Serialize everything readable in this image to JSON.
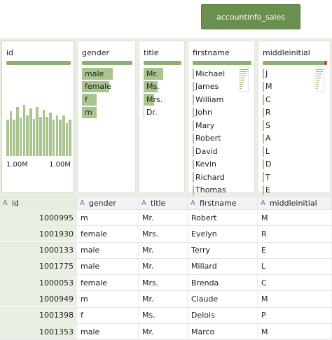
{
  "dataset": {
    "name": "accountinfo_sales"
  },
  "profiles": {
    "id": {
      "title": "id",
      "histogram": [
        0.55,
        0.68,
        0.55,
        0.75,
        0.58,
        0.78,
        0.62,
        0.72,
        0.56,
        0.75,
        0.6,
        0.7,
        0.6,
        0.66,
        0.55,
        0.62,
        0.55,
        0.62,
        0.5,
        0.55
      ],
      "axis_min": "1.00M",
      "axis_max": "1.00M"
    },
    "gender": {
      "title": "gender",
      "values": [
        {
          "label": "male",
          "frac": 0.95
        },
        {
          "label": "female",
          "frac": 0.85
        },
        {
          "label": "f",
          "frac": 0.45
        },
        {
          "label": "m",
          "frac": 0.45
        }
      ]
    },
    "title": {
      "title": "title",
      "values": [
        {
          "label": "Mr.",
          "frac": 1.0
        },
        {
          "label": "Ms.",
          "frac": 0.7
        },
        {
          "label": "Mrs.",
          "frac": 0.55
        },
        {
          "label": "Dr.",
          "frac": 0.05
        }
      ]
    },
    "firstname": {
      "title": "firstname",
      "values": [
        "Michael",
        "James",
        "William",
        "John",
        "Mary",
        "Robert",
        "David",
        "Kevin",
        "Richard",
        "Thomas"
      ]
    },
    "middleinitial": {
      "title": "middleinitial",
      "values": [
        "J",
        "M",
        "C",
        "R",
        "S",
        "A",
        "L",
        "D",
        "T",
        "E"
      ]
    }
  },
  "columns": [
    "id",
    "gender",
    "title",
    "firstname",
    "middleinitial"
  ],
  "column_type_icon": "A",
  "rows": [
    {
      "id": "1000995",
      "gender": "m",
      "title": "Mr.",
      "firstname": "Robert",
      "middleinitial": "M"
    },
    {
      "id": "1001930",
      "gender": "female",
      "title": "Mrs.",
      "firstname": "Evelyn",
      "middleinitial": "R"
    },
    {
      "id": "1000133",
      "gender": "male",
      "title": "Mr.",
      "firstname": "Terry",
      "middleinitial": "E"
    },
    {
      "id": "1001775",
      "gender": "male",
      "title": "Mr.",
      "firstname": "Millard",
      "middleinitial": "L"
    },
    {
      "id": "1000053",
      "gender": "female",
      "title": "Mrs.",
      "firstname": "Brenda",
      "middleinitial": "C"
    },
    {
      "id": "1000949",
      "gender": "m",
      "title": "Mr.",
      "firstname": "Claude",
      "middleinitial": "M"
    },
    {
      "id": "1001398",
      "gender": "f",
      "title": "Ms.",
      "firstname": "Delois",
      "middleinitial": "P"
    },
    {
      "id": "1001353",
      "gender": "male",
      "title": "Mr.",
      "firstname": "Marco",
      "middleinitial": "M"
    }
  ]
}
